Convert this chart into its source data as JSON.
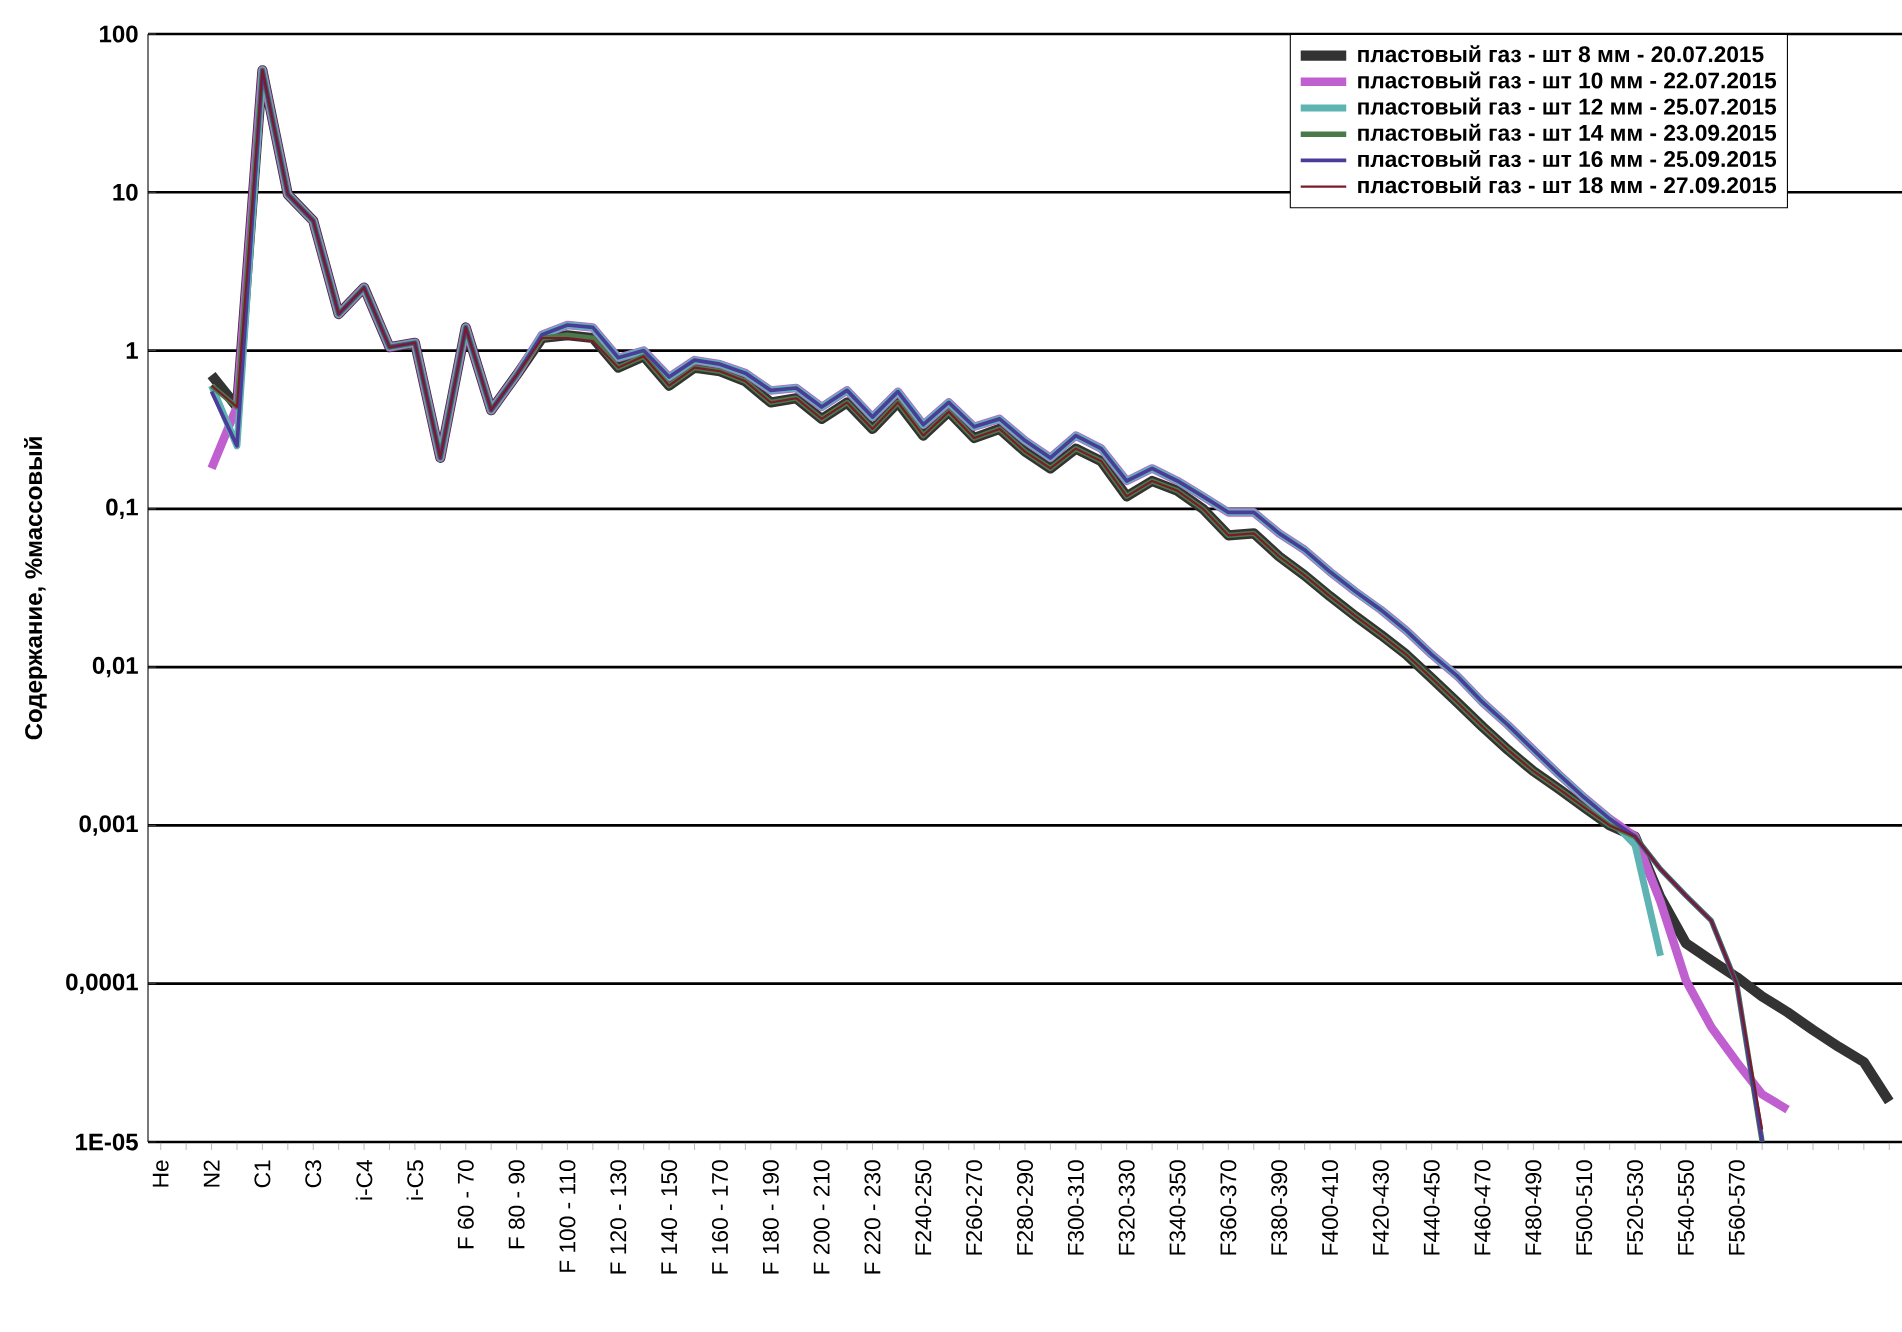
{
  "chart_data": {
    "type": "line",
    "ylabel": "Содержание, %массовый",
    "log": "y",
    "grid": "y",
    "legend": "top right",
    "line_style": "solid",
    "marker": "none",
    "categories": [
      "He",
      null,
      "N2",
      null,
      "C1",
      null,
      "C3",
      null,
      "i-C4",
      null,
      "i-C5",
      null,
      "F 60 - 70",
      null,
      "F 80 - 90",
      null,
      "F 100 - 110",
      null,
      "F 120 - 130",
      null,
      "F 140 - 150",
      null,
      "F 160 - 170",
      null,
      "F 180 - 190",
      null,
      "F 200 - 210",
      null,
      "F 220 - 230",
      null,
      "F240-250",
      null,
      "F260-270",
      null,
      "F280-290",
      null,
      "F300-310",
      null,
      "F320-330",
      null,
      "F340-350",
      null,
      "F360-370",
      null,
      "F380-390",
      null,
      "F400-410",
      null,
      "F420-430",
      null,
      "F440-450",
      null,
      "F460-470",
      null,
      "F480-490",
      null,
      "F500-510",
      null,
      "F520-530",
      null,
      "F540-550",
      null,
      "F560-570",
      null,
      null,
      null,
      null,
      null,
      null
    ],
    "ylim": [
      1e-05,
      100
    ],
    "yticks": [
      {
        "value": 1e-05,
        "label": "1E-05"
      },
      {
        "value": 0.0001,
        "label": "0,0001"
      },
      {
        "value": 0.001,
        "label": "0,001"
      },
      {
        "value": 0.01,
        "label": "0,01"
      },
      {
        "value": 0.1,
        "label": "0,1"
      },
      1,
      10,
      100
    ],
    "series": [
      {
        "name": "пластовый газ - шт  8 мм - 20.07.2015",
        "color": "#333333",
        "values": [
          null,
          null,
          0.7,
          0.44,
          59,
          9.7,
          6.6,
          1.7,
          2.5,
          1.05,
          1.12,
          0.21,
          1.4,
          0.42,
          0.7,
          1.2,
          1.25,
          1.2,
          0.78,
          0.92,
          0.6,
          0.78,
          0.74,
          0.64,
          0.47,
          0.5,
          0.37,
          0.47,
          0.32,
          0.47,
          0.29,
          0.41,
          0.28,
          0.32,
          0.23,
          0.18,
          0.24,
          0.2,
          0.12,
          0.15,
          0.13,
          0.1,
          0.068,
          0.07,
          0.05,
          0.038,
          0.028,
          0.021,
          0.016,
          0.012,
          0.0085,
          0.006,
          0.0042,
          0.003,
          0.0022,
          0.0017,
          0.0013,
          0.001,
          0.00085,
          0.00035,
          0.00018,
          0.00014,
          0.00011,
          8.3e-05,
          6.6e-05,
          5.1e-05,
          4e-05,
          3.2e-05,
          1.8e-05
        ]
      },
      {
        "name": "пластовый газ - шт 10 мм - 22.07.2015",
        "color": "#c060d0",
        "values": [
          null,
          null,
          0.18,
          0.44,
          59,
          9.7,
          6.6,
          1.7,
          2.5,
          1.05,
          1.12,
          0.21,
          1.4,
          0.42,
          0.7,
          1.26,
          1.45,
          1.4,
          0.9,
          1.0,
          0.68,
          0.87,
          0.82,
          0.72,
          0.56,
          0.58,
          0.44,
          0.56,
          0.38,
          0.55,
          0.34,
          0.47,
          0.33,
          0.37,
          0.27,
          0.21,
          0.29,
          0.24,
          0.15,
          0.18,
          0.15,
          0.12,
          0.095,
          0.095,
          0.07,
          0.055,
          0.04,
          0.03,
          0.023,
          0.017,
          0.012,
          0.0088,
          0.006,
          0.0043,
          0.003,
          0.0021,
          0.0015,
          0.0011,
          0.00085,
          0.00033,
          0.000105,
          5.3e-05,
          3.2e-05,
          2e-05,
          1.6e-05,
          null,
          null,
          null,
          null
        ]
      },
      {
        "name": "пластовый газ - шт 12 мм - 25.07.2015",
        "color": "#5fb3b3",
        "values": [
          null,
          null,
          0.6,
          0.25,
          59,
          9.7,
          6.6,
          1.7,
          2.5,
          1.05,
          1.12,
          0.21,
          1.4,
          0.42,
          0.7,
          1.26,
          1.45,
          1.4,
          0.9,
          1.0,
          0.68,
          0.87,
          0.82,
          0.72,
          0.56,
          0.58,
          0.44,
          0.56,
          0.38,
          0.55,
          0.34,
          0.47,
          0.33,
          0.37,
          0.27,
          0.21,
          0.29,
          0.24,
          0.15,
          0.18,
          0.15,
          0.12,
          0.095,
          0.095,
          0.07,
          0.055,
          0.04,
          0.03,
          0.023,
          0.017,
          0.012,
          0.0088,
          0.006,
          0.0043,
          0.003,
          0.0021,
          0.0015,
          0.0011,
          0.00075,
          0.00015,
          null,
          null,
          null,
          null,
          null,
          null,
          null,
          null,
          null
        ]
      },
      {
        "name": "пластовый газ - шт 14 мм - 23.09.2015",
        "color": "#4a7a4a",
        "values": [
          null,
          null,
          0.6,
          0.44,
          59,
          9.7,
          6.6,
          1.7,
          2.5,
          1.05,
          1.12,
          0.21,
          1.4,
          0.42,
          0.7,
          1.2,
          1.25,
          1.2,
          0.78,
          0.92,
          0.6,
          0.78,
          0.74,
          0.64,
          0.47,
          0.5,
          0.37,
          0.47,
          0.32,
          0.47,
          0.29,
          0.41,
          0.28,
          0.32,
          0.23,
          0.18,
          0.24,
          0.2,
          0.12,
          0.15,
          0.13,
          0.1,
          0.068,
          0.07,
          0.05,
          0.038,
          0.028,
          0.021,
          0.016,
          0.012,
          0.0085,
          0.006,
          0.0042,
          0.003,
          0.0022,
          0.0017,
          0.0013,
          0.001,
          0.00085,
          0.00053,
          0.00036,
          0.00025,
          0.0001,
          1e-05,
          null,
          null,
          null,
          null,
          null
        ]
      },
      {
        "name": "пластовый газ - шт 16 мм - 25.09.2015",
        "color": "#4b3c9a",
        "values": [
          null,
          null,
          0.55,
          0.25,
          59,
          9.7,
          6.6,
          1.7,
          2.5,
          1.05,
          1.12,
          0.21,
          1.4,
          0.42,
          0.7,
          1.26,
          1.45,
          1.4,
          0.9,
          1.0,
          0.68,
          0.87,
          0.82,
          0.72,
          0.56,
          0.58,
          0.44,
          0.56,
          0.38,
          0.55,
          0.34,
          0.47,
          0.33,
          0.37,
          0.27,
          0.21,
          0.29,
          0.24,
          0.15,
          0.18,
          0.15,
          0.12,
          0.095,
          0.095,
          0.07,
          0.055,
          0.04,
          0.03,
          0.023,
          0.017,
          0.012,
          0.0088,
          0.006,
          0.0043,
          0.003,
          0.0021,
          0.0015,
          0.0011,
          0.00085,
          0.00053,
          0.00036,
          0.00025,
          0.0001,
          1e-05,
          null,
          null,
          null,
          null,
          null
        ]
      },
      {
        "name": "пластовый газ - шт 18 мм - 27.09.2015",
        "color": "#7a1a2a",
        "values": [
          null,
          null,
          0.6,
          0.44,
          59,
          9.7,
          6.6,
          1.7,
          2.5,
          1.05,
          1.12,
          0.21,
          1.4,
          0.42,
          0.7,
          1.2,
          1.2,
          1.15,
          0.78,
          0.92,
          0.6,
          0.78,
          0.74,
          0.64,
          0.47,
          0.5,
          0.37,
          0.47,
          0.32,
          0.47,
          0.29,
          0.41,
          0.28,
          0.32,
          0.23,
          0.18,
          0.24,
          0.2,
          0.12,
          0.15,
          0.13,
          0.1,
          0.068,
          0.07,
          0.05,
          0.038,
          0.028,
          0.021,
          0.016,
          0.012,
          0.0085,
          0.006,
          0.0042,
          0.003,
          0.0022,
          0.0017,
          0.0013,
          0.001,
          0.00085,
          0.00053,
          0.00036,
          0.00025,
          0.0001,
          1.2e-05,
          null,
          null,
          null,
          null,
          null
        ]
      }
    ]
  }
}
